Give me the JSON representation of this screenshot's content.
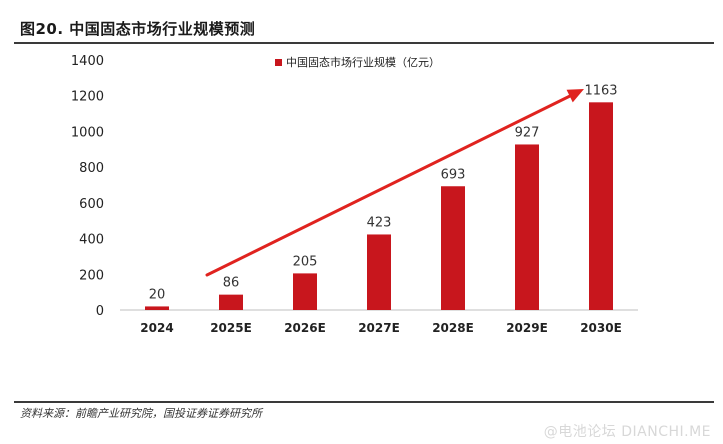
{
  "figure": {
    "title": "图20. 中国固态市场行业规模预测",
    "source": "资料来源：前瞻产业研究院，国投证券证券研究所",
    "watermark": "@电池论坛 DIANCHI.ME"
  },
  "colors": {
    "bar": "#c8161d",
    "arrow": "#e0231f",
    "axis_text": "#222222",
    "label_text": "#333333"
  },
  "chart_data": {
    "type": "bar",
    "categories": [
      "2024",
      "2025E",
      "2026E",
      "2027E",
      "2028E",
      "2029E",
      "2030E"
    ],
    "series": [
      {
        "name": "中国固态市场行业规模（亿元）",
        "values": [
          20,
          86,
          205,
          423,
          693,
          927,
          1163
        ]
      }
    ],
    "data_labels": [
      "20",
      "86",
      "205",
      "423",
      "693",
      "927",
      "1163"
    ],
    "ylim": [
      0,
      1400
    ],
    "yticks": [
      0,
      200,
      400,
      600,
      800,
      1000,
      1200,
      1400
    ],
    "grid": false,
    "legend_position": "top-center",
    "annotation": "trend-arrow"
  }
}
